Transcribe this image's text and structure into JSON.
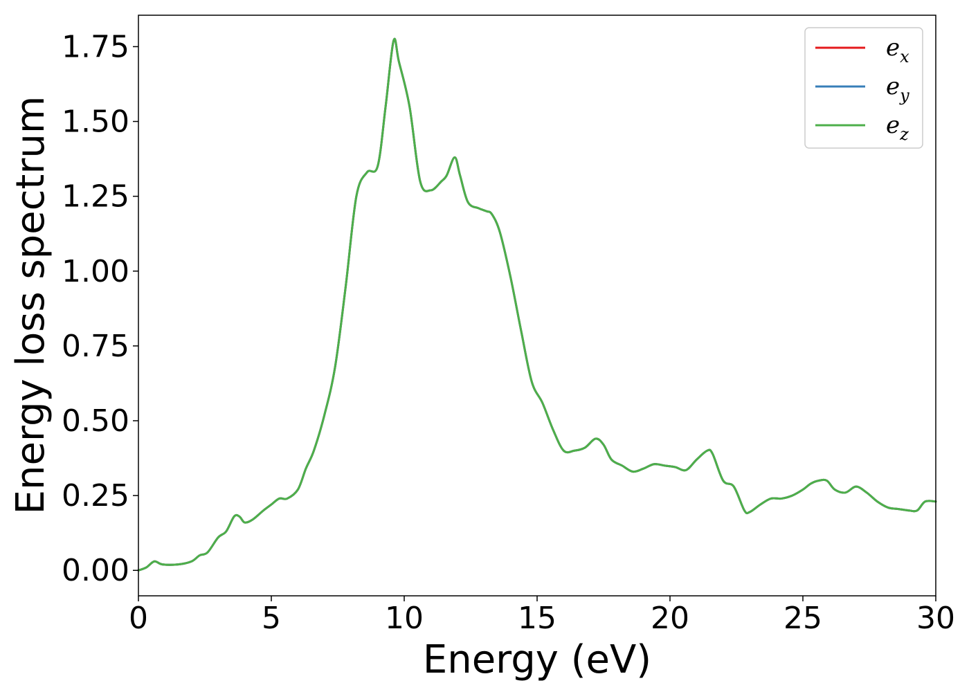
{
  "chart_data": {
    "type": "line",
    "xlabel": "Energy (eV)",
    "ylabel": "Energy loss spectrum",
    "xlim": [
      0,
      30
    ],
    "ylim": [
      -0.085,
      1.855
    ],
    "grid": false,
    "legend_position": "top-right",
    "x_ticks": [
      0,
      5,
      10,
      15,
      20,
      25,
      30
    ],
    "x_tick_labels": [
      "0",
      "5",
      "10",
      "15",
      "20",
      "25",
      "30"
    ],
    "y_ticks": [
      0,
      0.25,
      0.5,
      0.75,
      1.0,
      1.25,
      1.5,
      1.75
    ],
    "y_tick_labels": [
      "0.00",
      "0.25",
      "0.50",
      "0.75",
      "1.00",
      "1.25",
      "1.50",
      "1.75"
    ],
    "legend": [
      {
        "base": "e",
        "sub": "x",
        "color": "#e41a1c"
      },
      {
        "base": "e",
        "sub": "y",
        "color": "#377eb8"
      },
      {
        "base": "e",
        "sub": "z",
        "color": "#4daf4a"
      }
    ],
    "x": [
      0,
      0.3,
      0.6,
      0.9,
      1.5,
      2.0,
      2.3,
      2.6,
      3.0,
      3.3,
      3.6,
      3.8,
      4.0,
      4.3,
      4.7,
      5.0,
      5.3,
      5.6,
      6.0,
      6.3,
      6.6,
      7.0,
      7.4,
      7.8,
      8.2,
      8.6,
      9.0,
      9.3,
      9.6,
      9.8,
      10.2,
      10.6,
      11.0,
      11.4,
      11.6,
      11.9,
      12.1,
      12.4,
      12.8,
      13.1,
      13.3,
      13.6,
      14.0,
      14.4,
      14.8,
      15.2,
      15.6,
      16.0,
      16.4,
      16.8,
      17.2,
      17.5,
      17.8,
      18.2,
      18.6,
      19.0,
      19.4,
      19.8,
      20.2,
      20.6,
      21.0,
      21.4,
      21.6,
      22.0,
      22.4,
      22.8,
      23.0,
      23.4,
      23.8,
      24.2,
      24.6,
      25.0,
      25.3,
      25.6,
      25.9,
      26.2,
      26.6,
      27.0,
      27.4,
      27.8,
      28.2,
      28.6,
      29.0,
      29.3,
      29.6,
      30.0
    ],
    "series": [
      {
        "name": "e_x",
        "color": "#e41a1c",
        "values": [
          0.0,
          0.01,
          0.03,
          0.02,
          0.02,
          0.03,
          0.05,
          0.06,
          0.11,
          0.13,
          0.18,
          0.18,
          0.16,
          0.17,
          0.2,
          0.22,
          0.24,
          0.24,
          0.27,
          0.34,
          0.4,
          0.52,
          0.68,
          0.95,
          1.25,
          1.33,
          1.35,
          1.55,
          1.77,
          1.7,
          1.55,
          1.3,
          1.27,
          1.3,
          1.32,
          1.38,
          1.32,
          1.23,
          1.21,
          1.2,
          1.19,
          1.13,
          0.98,
          0.8,
          0.63,
          0.56,
          0.47,
          0.4,
          0.4,
          0.41,
          0.44,
          0.42,
          0.37,
          0.35,
          0.33,
          0.34,
          0.355,
          0.35,
          0.345,
          0.335,
          0.37,
          0.4,
          0.39,
          0.3,
          0.28,
          0.2,
          0.195,
          0.22,
          0.24,
          0.24,
          0.25,
          0.27,
          0.29,
          0.3,
          0.3,
          0.27,
          0.26,
          0.28,
          0.26,
          0.23,
          0.21,
          0.205,
          0.2,
          0.2,
          0.23,
          0.23
        ]
      },
      {
        "name": "e_y",
        "color": "#377eb8",
        "values": [
          0.0,
          0.01,
          0.03,
          0.02,
          0.02,
          0.03,
          0.05,
          0.06,
          0.11,
          0.13,
          0.18,
          0.18,
          0.16,
          0.17,
          0.2,
          0.22,
          0.24,
          0.24,
          0.27,
          0.34,
          0.4,
          0.52,
          0.68,
          0.95,
          1.25,
          1.33,
          1.35,
          1.55,
          1.77,
          1.7,
          1.55,
          1.3,
          1.27,
          1.3,
          1.32,
          1.38,
          1.32,
          1.23,
          1.21,
          1.2,
          1.19,
          1.13,
          0.98,
          0.8,
          0.63,
          0.56,
          0.47,
          0.4,
          0.4,
          0.41,
          0.44,
          0.42,
          0.37,
          0.35,
          0.33,
          0.34,
          0.355,
          0.35,
          0.345,
          0.335,
          0.37,
          0.4,
          0.39,
          0.3,
          0.28,
          0.2,
          0.195,
          0.22,
          0.24,
          0.24,
          0.25,
          0.27,
          0.29,
          0.3,
          0.3,
          0.27,
          0.26,
          0.28,
          0.26,
          0.23,
          0.21,
          0.205,
          0.2,
          0.2,
          0.23,
          0.23
        ]
      },
      {
        "name": "e_z",
        "color": "#4daf4a",
        "values": [
          0.0,
          0.01,
          0.03,
          0.02,
          0.02,
          0.03,
          0.05,
          0.06,
          0.11,
          0.13,
          0.18,
          0.18,
          0.16,
          0.17,
          0.2,
          0.22,
          0.24,
          0.24,
          0.27,
          0.34,
          0.4,
          0.52,
          0.68,
          0.95,
          1.25,
          1.33,
          1.35,
          1.55,
          1.77,
          1.7,
          1.55,
          1.3,
          1.27,
          1.3,
          1.32,
          1.38,
          1.32,
          1.23,
          1.21,
          1.2,
          1.19,
          1.13,
          0.98,
          0.8,
          0.63,
          0.56,
          0.47,
          0.4,
          0.4,
          0.41,
          0.44,
          0.42,
          0.37,
          0.35,
          0.33,
          0.34,
          0.355,
          0.35,
          0.345,
          0.335,
          0.37,
          0.4,
          0.39,
          0.3,
          0.28,
          0.2,
          0.195,
          0.22,
          0.24,
          0.24,
          0.25,
          0.27,
          0.29,
          0.3,
          0.3,
          0.27,
          0.26,
          0.28,
          0.26,
          0.23,
          0.21,
          0.205,
          0.2,
          0.2,
          0.23,
          0.23
        ]
      }
    ]
  }
}
